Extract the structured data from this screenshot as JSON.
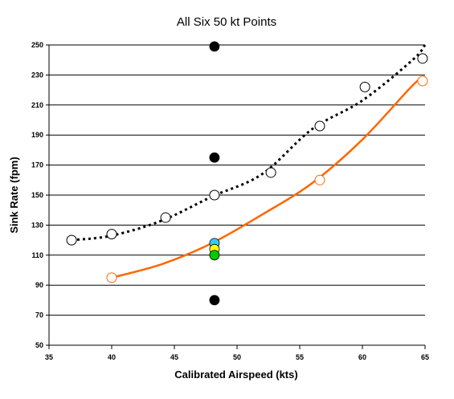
{
  "chart_data": {
    "type": "scatter",
    "title": "All Six 50 kt Points",
    "xlabel": "Calibrated Airspeed (kts)",
    "ylabel": "Sink Rate (fpm)",
    "xlim": [
      35,
      65
    ],
    "ylim": [
      50,
      250
    ],
    "xticks": [
      "35",
      "40",
      "45",
      "50",
      "55",
      "60",
      "65"
    ],
    "yticks": [
      "50",
      "70",
      "90",
      "110",
      "130",
      "150",
      "170",
      "190",
      "210",
      "230",
      "250"
    ],
    "grid": "horizontal",
    "legend": "none",
    "series": [
      {
        "marker": "open-circle",
        "color": "#000000",
        "x": [
          36.8,
          40.0,
          44.3,
          48.2,
          52.7,
          56.6,
          60.2,
          64.8
        ],
        "y": [
          120,
          124,
          135,
          150,
          165,
          196,
          222,
          241
        ]
      },
      {
        "marker": "open-circle",
        "color": "#ff6600",
        "x": [
          40.0,
          56.6,
          64.8
        ],
        "y": [
          95,
          160,
          226
        ]
      },
      {
        "marker": "filled-circle",
        "colors": [
          "#000000",
          "#000000",
          "#33ccff",
          "#ffff00",
          "#00cc00",
          "#000000"
        ],
        "x": [
          48.2,
          48.2,
          48.2,
          48.2,
          48.2,
          48.2
        ],
        "y": [
          249,
          175,
          118,
          114,
          110,
          80
        ]
      }
    ],
    "trendlines": [
      {
        "style": "dotted",
        "color": "#000000",
        "x": [
          36.8,
          40,
          44,
          48,
          52,
          56,
          60,
          64,
          65
        ],
        "y": [
          120,
          123,
          133,
          149,
          164,
          194,
          213,
          240,
          250
        ]
      },
      {
        "style": "solid",
        "color": "#ff6600",
        "x": [
          40,
          44,
          48,
          52,
          56,
          60,
          64,
          65
        ],
        "y": [
          95,
          104,
          118,
          137,
          158,
          187,
          223,
          229
        ]
      }
    ]
  }
}
